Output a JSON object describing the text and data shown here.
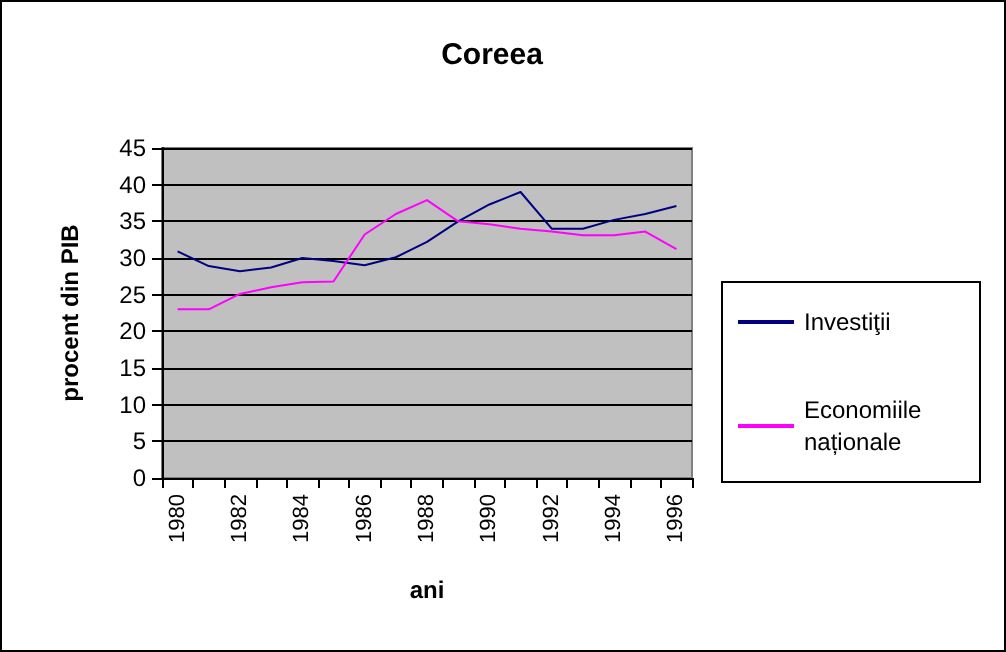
{
  "chart_data": {
    "type": "line",
    "title": "Coreea",
    "xlabel": "ani",
    "ylabel": "procent din PIB",
    "categories": [
      "1980",
      null,
      "1982",
      null,
      "1984",
      null,
      "1986",
      null,
      "1988",
      null,
      "1990",
      null,
      "1992",
      null,
      "1994",
      null,
      "1996"
    ],
    "series": [
      {
        "name": "Investiţii",
        "color": "#000080",
        "values": [
          30.9,
          28.9,
          28.2,
          28.7,
          30.0,
          29.6,
          29.0,
          30.1,
          32.2,
          35.0,
          37.3,
          39.0,
          34.0,
          34.0,
          35.2,
          36.0,
          37.1
        ]
      },
      {
        "name": "Economiile naționale",
        "color": "#ff00ff",
        "values": [
          23.0,
          23.0,
          25.1,
          26.0,
          26.7,
          26.8,
          33.2,
          36.0,
          37.9,
          35.0,
          34.6,
          34.0,
          33.6,
          33.1,
          33.1,
          33.6,
          31.2
        ]
      }
    ],
    "ylim": [
      0,
      45
    ],
    "yticks": [
      0,
      5,
      10,
      15,
      20,
      25,
      30,
      35,
      40,
      45
    ],
    "grid": "y",
    "legend": "right",
    "marker": "none",
    "line_style": "solid"
  }
}
